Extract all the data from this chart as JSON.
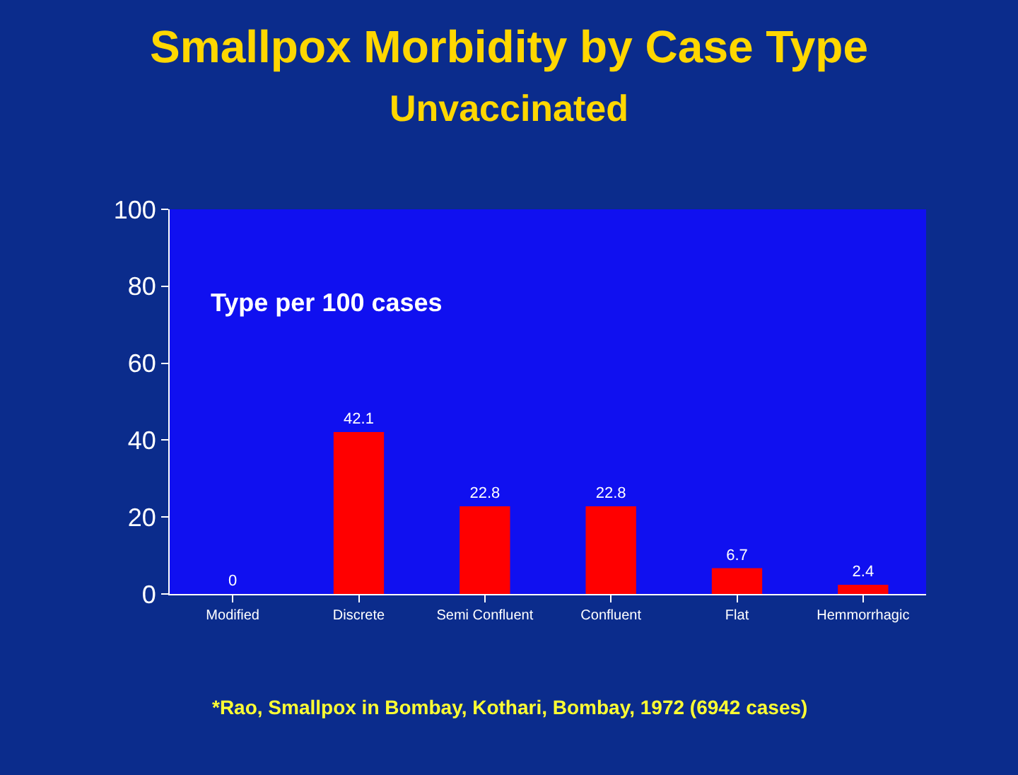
{
  "chart_data": {
    "type": "bar",
    "title": "Smallpox Morbidity by Case Type",
    "subtitle": "Unvaccinated",
    "categories": [
      "Modified",
      "Discrete",
      "Semi Confluent",
      "Confluent",
      "Flat",
      "Hemmorrhagic"
    ],
    "values": [
      0,
      42.1,
      22.8,
      22.8,
      6.7,
      2.4
    ],
    "color": "#ff0000",
    "ylim": [
      0,
      100
    ],
    "yticks": [
      0,
      20,
      40,
      60,
      80,
      100
    ],
    "grid": false,
    "legend": false,
    "data_labels": true,
    "annotations": [
      "Type per 100 cases",
      "*Rao, Smallpox in Bombay, Kothari, Bombay, 1972 (6942 cases)"
    ]
  }
}
